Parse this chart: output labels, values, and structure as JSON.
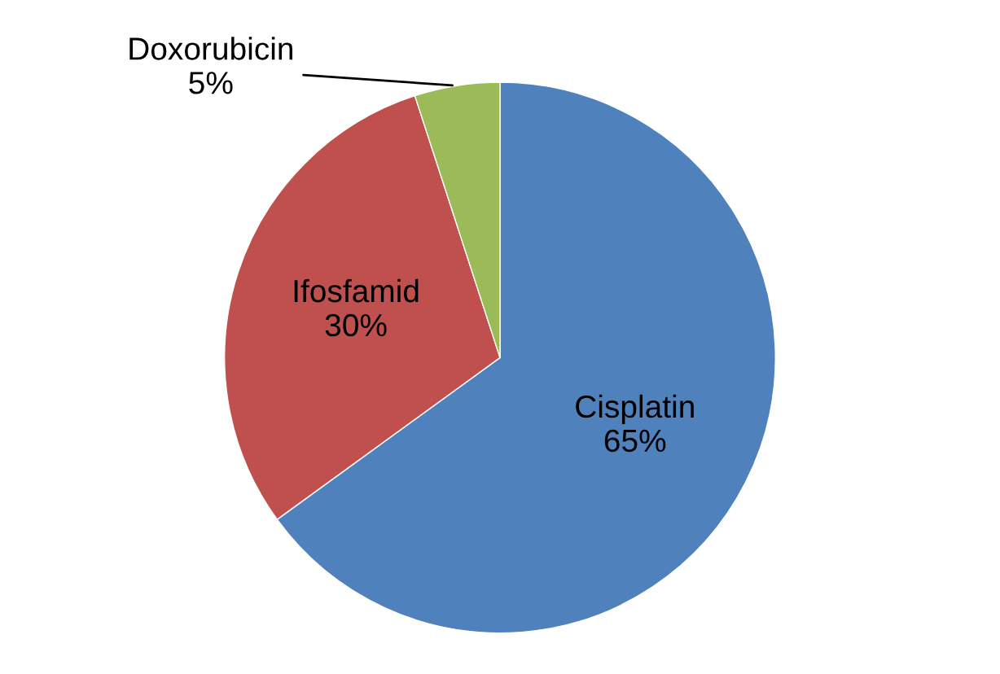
{
  "chart_data": {
    "type": "pie",
    "categories": [
      "Cisplatin",
      "Ifosfamid",
      "Doxorubicin"
    ],
    "values": [
      65,
      30,
      5
    ],
    "colors": [
      "#4f81bd",
      "#c0504d",
      "#9bbb59"
    ],
    "value_labels": [
      "65%",
      "30%",
      "5%"
    ]
  }
}
